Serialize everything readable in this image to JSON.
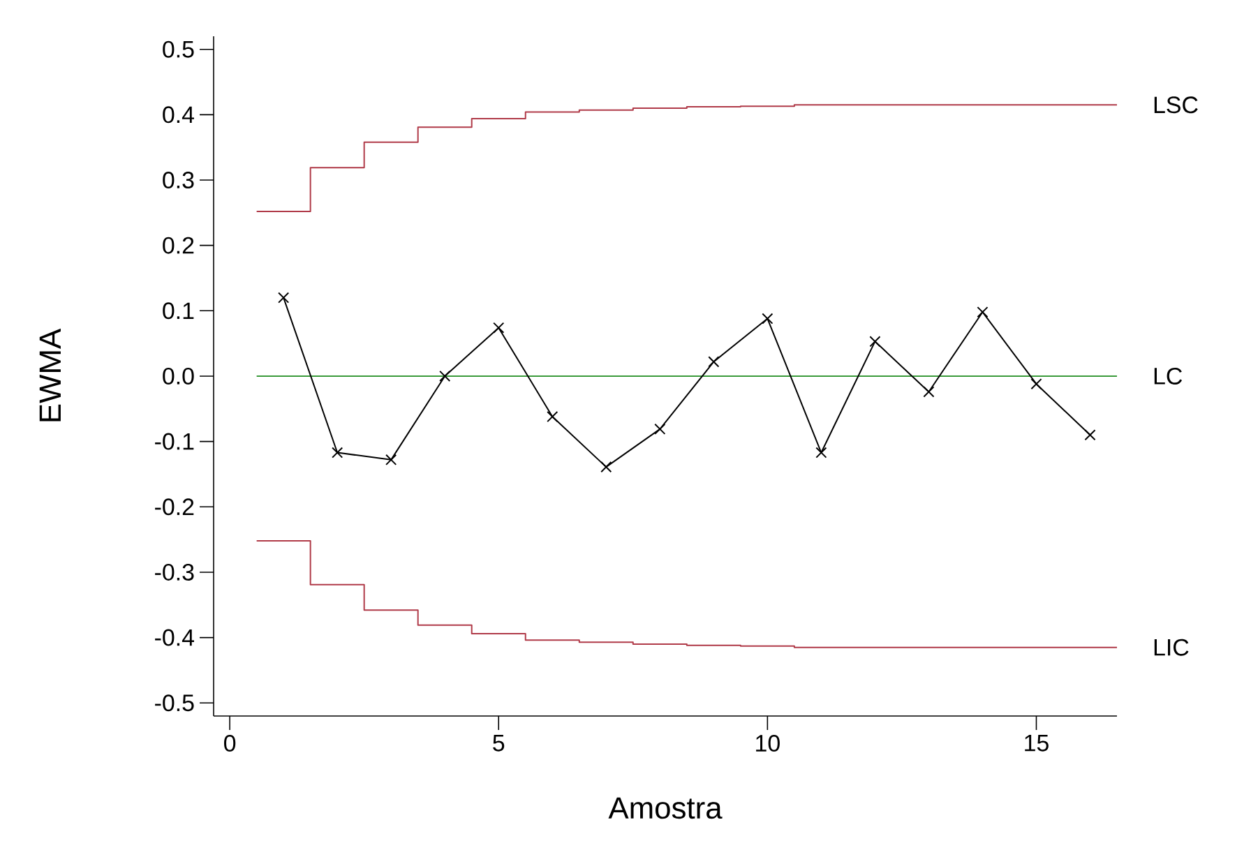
{
  "chart_data": {
    "type": "line",
    "xlabel": "Amostra",
    "ylabel": "EWMA",
    "xlim": [
      -0.3,
      16.5
    ],
    "ylim": [
      -0.52,
      0.52
    ],
    "xticks": [
      0,
      5,
      10,
      15
    ],
    "yticks": [
      0.5,
      0.4,
      0.3,
      0.2,
      0.1,
      {
        "value": 0,
        "label": "0.0"
      },
      -0.1,
      -0.2,
      -0.3,
      -0.4,
      -0.5
    ],
    "grid": false,
    "series": [
      {
        "name": "LSC",
        "type": "step",
        "color": "#b03a48",
        "marker": "none",
        "x": [
          0.5,
          1.5,
          2.5,
          3.5,
          4.5,
          5.5,
          6.5,
          7.5,
          8.5,
          9.5,
          10.5,
          16.5
        ],
        "values": [
          0.252,
          0.319,
          0.358,
          0.381,
          0.394,
          0.404,
          0.407,
          0.41,
          0.412,
          0.413,
          0.415,
          0.415
        ]
      },
      {
        "name": "LC",
        "type": "line",
        "color": "#3a9a3a",
        "marker": "none",
        "x": [
          0.5,
          16.5
        ],
        "values": [
          0,
          0
        ]
      },
      {
        "name": "LIC",
        "type": "step",
        "color": "#b03a48",
        "marker": "none",
        "x": [
          0.5,
          1.5,
          2.5,
          3.5,
          4.5,
          5.5,
          6.5,
          7.5,
          8.5,
          9.5,
          10.5,
          16.5
        ],
        "values": [
          -0.252,
          -0.319,
          -0.358,
          -0.381,
          -0.394,
          -0.404,
          -0.407,
          -0.41,
          -0.412,
          -0.413,
          -0.415,
          -0.415
        ]
      },
      {
        "type": "line",
        "color": "#000000",
        "marker": "cross",
        "x": [
          1,
          2,
          3,
          4,
          5,
          6,
          7,
          8,
          9,
          10,
          11,
          12,
          13,
          14,
          15,
          16
        ],
        "values": [
          0.12,
          -0.117,
          -0.128,
          0.0,
          0.074,
          -0.062,
          -0.139,
          -0.081,
          0.022,
          0.088,
          -0.117,
          0.053,
          -0.024,
          0.098,
          -0.012,
          -0.09
        ]
      }
    ]
  }
}
